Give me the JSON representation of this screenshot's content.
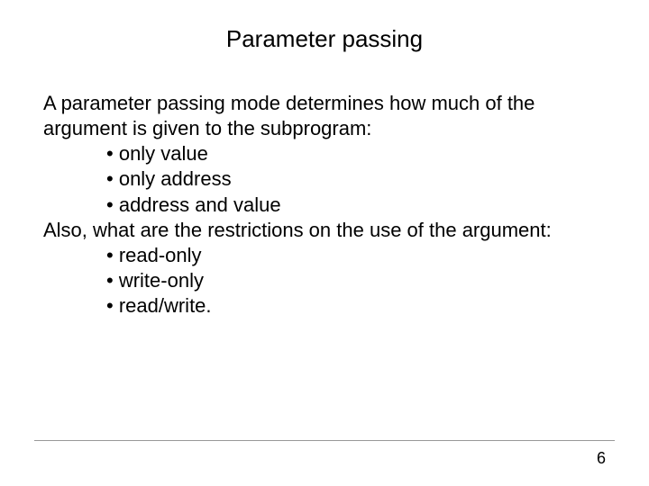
{
  "slide": {
    "title": "Parameter passing",
    "intro1": "A parameter passing mode determines how much of the argument is given to the subprogram:",
    "bullets1": {
      "b0": "only value",
      "b1": "only address",
      "b2": "address and value"
    },
    "intro2": "Also, what are the restrictions on the use of the argument:",
    "bullets2": {
      "b0": "read-only",
      "b1": "write-only",
      "b2": "read/write."
    },
    "page_number": "6",
    "bullet_char": "•",
    "colors": {
      "background": "#ffffff",
      "text": "#000000",
      "divider": "#999999"
    },
    "fonts": {
      "title_size": 26,
      "body_size": 22,
      "pagenum_size": 18,
      "family": "Arial"
    }
  }
}
